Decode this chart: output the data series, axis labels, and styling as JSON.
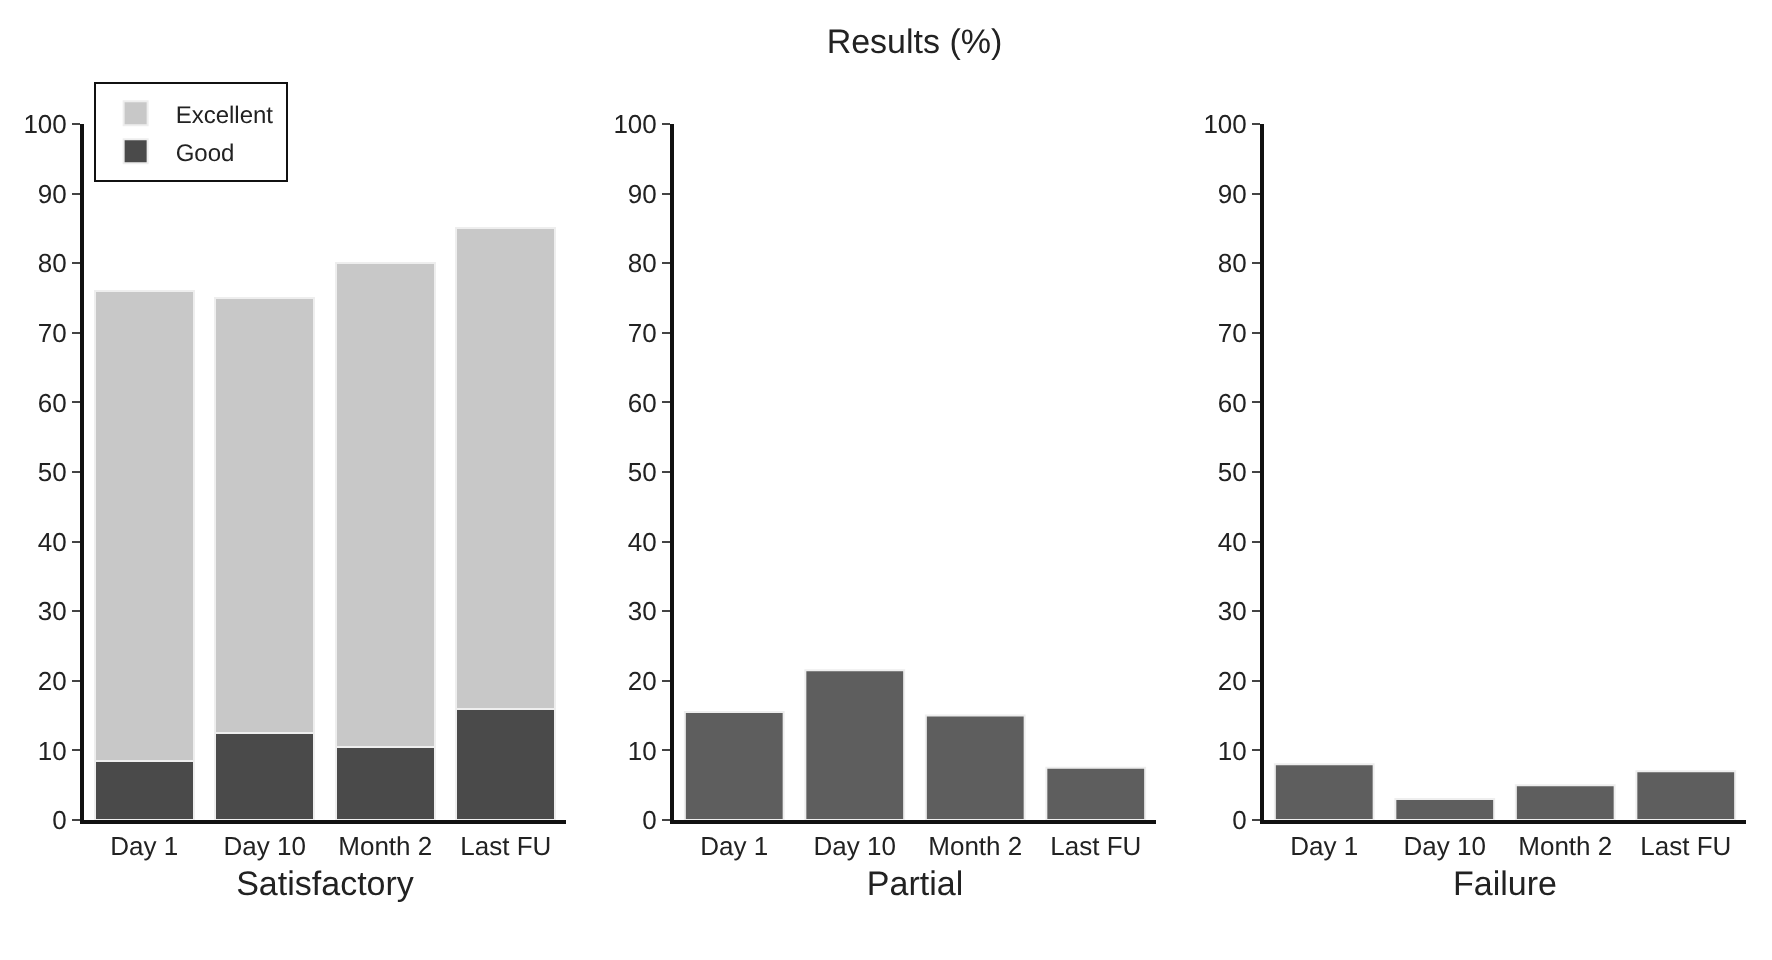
{
  "chart_data": [
    {
      "type": "bar",
      "xlabel": "Satisfactory",
      "categories": [
        "Day 1",
        "Day 10",
        "Month 2",
        "Last FU"
      ],
      "stacked": true,
      "legend": "top left",
      "grid": false,
      "ylim": [
        0,
        100
      ],
      "yticks": [
        0,
        10,
        20,
        30,
        40,
        50,
        60,
        70,
        80,
        90,
        100
      ],
      "series": [
        {
          "name": "Good",
          "color": "#4a4a4a",
          "values": [
            8.5,
            12.5,
            10.5,
            16
          ]
        },
        {
          "name": "Excellent",
          "color": "#c8c8c8",
          "values": [
            67.5,
            62.5,
            69.5,
            69
          ]
        }
      ]
    },
    {
      "type": "bar",
      "title": "Results (%)",
      "xlabel": "Partial",
      "categories": [
        "Day 1",
        "Day 10",
        "Month 2",
        "Last FU"
      ],
      "grid": false,
      "ylim": [
        0,
        100
      ],
      "yticks": [
        0,
        10,
        20,
        30,
        40,
        50,
        60,
        70,
        80,
        90,
        100
      ],
      "series": [
        {
          "color": "#5e5e5e",
          "values": [
            15.5,
            21.5,
            15,
            7.5
          ]
        }
      ]
    },
    {
      "type": "bar",
      "xlabel": "Failure",
      "categories": [
        "Day 1",
        "Day 10",
        "Month 2",
        "Last FU"
      ],
      "grid": false,
      "ylim": [
        0,
        100
      ],
      "yticks": [
        0,
        10,
        20,
        30,
        40,
        50,
        60,
        70,
        80,
        90,
        100
      ],
      "series": [
        {
          "color": "#5e5e5e",
          "values": [
            8,
            3,
            5,
            7
          ]
        }
      ]
    }
  ]
}
